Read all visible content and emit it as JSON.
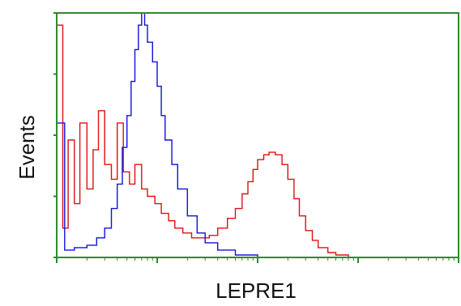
{
  "chart_data": {
    "type": "line",
    "title": "",
    "xlabel": "LEPRE1",
    "ylabel": "Events",
    "x_scale": "log",
    "xlim": [
      1,
      10000
    ],
    "ylim": [
      0,
      100
    ],
    "grid": false,
    "legend": "none",
    "colors": {
      "frame": "#2e8b2e",
      "series_red": "#dd1111",
      "series_blue": "#1111dd"
    },
    "series": [
      {
        "color": "#dd1111",
        "x": [
          1,
          1.15,
          1.3,
          1.5,
          1.7,
          2,
          2.3,
          2.6,
          3,
          3.5,
          4,
          4.6,
          5.3,
          6,
          7,
          8,
          9.5,
          11,
          13,
          15,
          18,
          22,
          27,
          33,
          40,
          50,
          60,
          70,
          80,
          90,
          100,
          115,
          130,
          150,
          175,
          200,
          230,
          260,
          300,
          350,
          400,
          500,
          600,
          800,
          1000
        ],
        "y": [
          95,
          12,
          48,
          22,
          55,
          28,
          44,
          60,
          38,
          32,
          55,
          35,
          30,
          38,
          28,
          25,
          22,
          18,
          15,
          12,
          10,
          8,
          8,
          9,
          12,
          16,
          20,
          26,
          31,
          36,
          40,
          42,
          43,
          42,
          38,
          32,
          24,
          17,
          11,
          7,
          4,
          2,
          1,
          0,
          0
        ]
      },
      {
        "color": "#1111dd",
        "x": [
          1,
          1.2,
          1.5,
          2,
          2.5,
          3,
          3.5,
          4,
          4.5,
          5,
          5.5,
          6,
          6.5,
          7,
          7.5,
          8,
          9,
          10,
          11,
          12,
          14,
          16,
          20,
          25,
          30,
          40,
          60,
          100,
          200
        ],
        "y": [
          55,
          3,
          4,
          5,
          8,
          12,
          20,
          30,
          45,
          58,
          72,
          85,
          95,
          100,
          95,
          88,
          80,
          70,
          58,
          48,
          38,
          28,
          17,
          10,
          6,
          3,
          1,
          0,
          0
        ]
      }
    ]
  }
}
